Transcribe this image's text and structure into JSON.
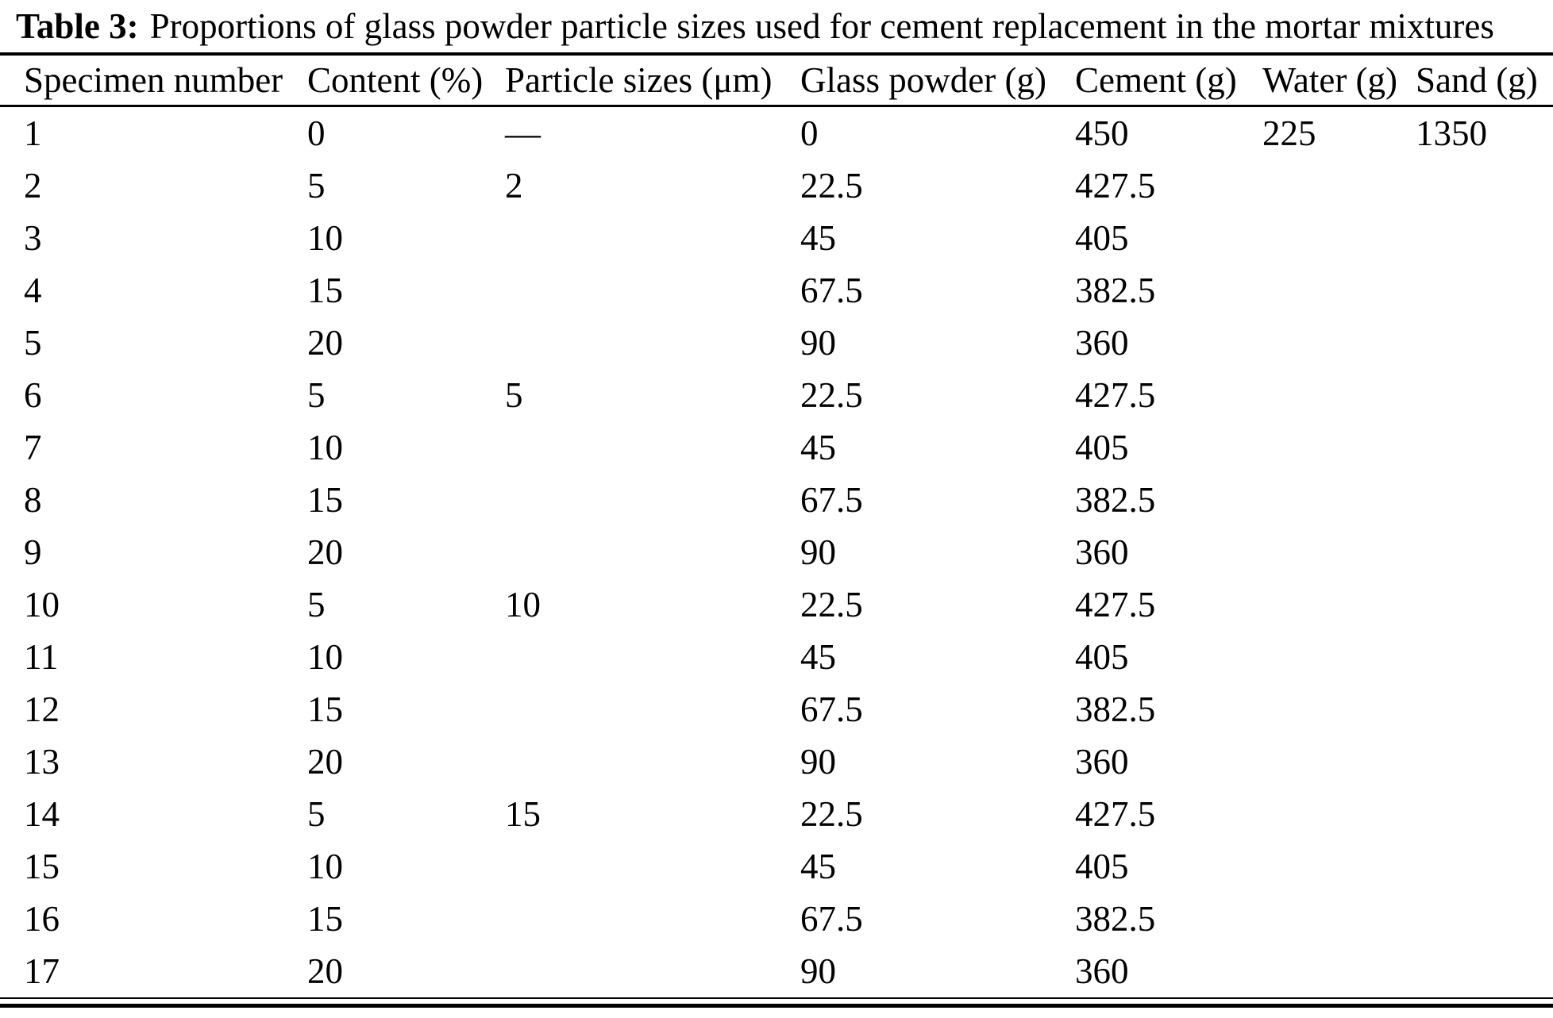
{
  "caption": {
    "label": "Table 3:",
    "text": "Proportions of glass powder particle sizes used for cement replacement in the mortar mixtures"
  },
  "table": {
    "columns": [
      "Specimen number",
      "Content (%)",
      "Particle sizes (μm)",
      "Glass powder (g)",
      "Cement (g)",
      "Water (g)",
      "Sand (g)"
    ],
    "rows": [
      [
        "1",
        "0",
        "—",
        "0",
        "450",
        "225",
        "1350"
      ],
      [
        "2",
        "5",
        "2",
        "22.5",
        "427.5",
        "",
        ""
      ],
      [
        "3",
        "10",
        "",
        "45",
        "405",
        "",
        ""
      ],
      [
        "4",
        "15",
        "",
        "67.5",
        "382.5",
        "",
        ""
      ],
      [
        "5",
        "20",
        "",
        "90",
        "360",
        "",
        ""
      ],
      [
        "6",
        "5",
        "5",
        "22.5",
        "427.5",
        "",
        ""
      ],
      [
        "7",
        "10",
        "",
        "45",
        "405",
        "",
        ""
      ],
      [
        "8",
        "15",
        "",
        "67.5",
        "382.5",
        "",
        ""
      ],
      [
        "9",
        "20",
        "",
        "90",
        "360",
        "",
        ""
      ],
      [
        "10",
        "5",
        "10",
        "22.5",
        "427.5",
        "",
        ""
      ],
      [
        "11",
        "10",
        "",
        "45",
        "405",
        "",
        ""
      ],
      [
        "12",
        "15",
        "",
        "67.5",
        "382.5",
        "",
        ""
      ],
      [
        "13",
        "20",
        "",
        "90",
        "360",
        "",
        ""
      ],
      [
        "14",
        "5",
        "15",
        "22.5",
        "427.5",
        "",
        ""
      ],
      [
        "15",
        "10",
        "",
        "45",
        "405",
        "",
        ""
      ],
      [
        "16",
        "15",
        "",
        "67.5",
        "382.5",
        "",
        ""
      ],
      [
        "17",
        "20",
        "",
        "90",
        "360",
        "",
        ""
      ]
    ]
  },
  "colors": {
    "text": "#000000",
    "background": "#ffffff",
    "rule": "#000000"
  }
}
